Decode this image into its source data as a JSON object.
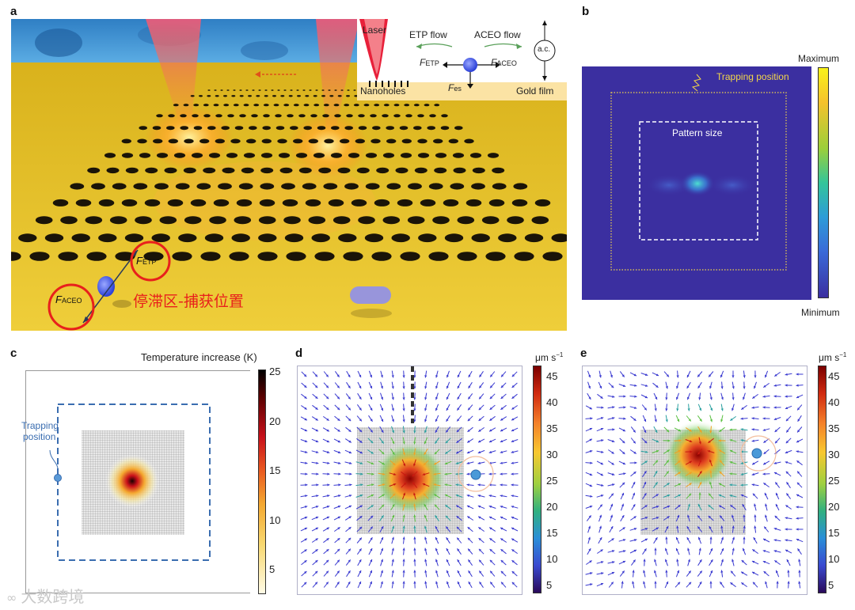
{
  "panels": {
    "a": {
      "label": "a",
      "inset": {
        "laser": "Laser",
        "nanoholes": "Nanoholes",
        "gold_film": "Gold film",
        "etp_flow": "ETP flow",
        "aceo_flow": "ACEO flow",
        "ac": "a.c.",
        "f_main": "F",
        "etp_sub": "ETP",
        "aceo_sub": "ACEO",
        "es_sub": "es"
      },
      "annotations": {
        "f_main": "F",
        "etp_sub": "ETP",
        "aceo_sub": "ACEO",
        "chinese_caption": "停滞区-捕获位置"
      }
    },
    "b": {
      "label": "b",
      "trapping_position": "Trapping position",
      "pattern_size": "Pattern size",
      "colorbar_max": "Maximum",
      "colorbar_min": "Minimum"
    },
    "c": {
      "label": "c",
      "title": "Temperature increase (K)",
      "trapping_position_line1": "Trapping",
      "trapping_position_line2": "position",
      "colorbar_ticks": [
        "25",
        "20",
        "15",
        "10",
        "5"
      ]
    },
    "d": {
      "label": "d",
      "unit": "μm s",
      "unit_exp": "−1",
      "colorbar_ticks": [
        "45",
        "40",
        "35",
        "30",
        "25",
        "20",
        "15",
        "10",
        "5"
      ]
    },
    "e": {
      "label": "e",
      "unit": "μm s",
      "unit_exp": "−1",
      "colorbar_ticks": [
        "45",
        "40",
        "35",
        "30",
        "25",
        "20",
        "15",
        "10",
        "5"
      ]
    }
  },
  "watermark": "大数跨境",
  "colors": {
    "gold": "#e8c227",
    "red_circle": "#e8201c",
    "chinese_red": "#e8201c",
    "panel_b_bg": "#3b2fa0",
    "arrow_blue": "#3a3ad0",
    "dash_blue": "#3a6db0",
    "trap_yellow": "#f2d64a"
  }
}
